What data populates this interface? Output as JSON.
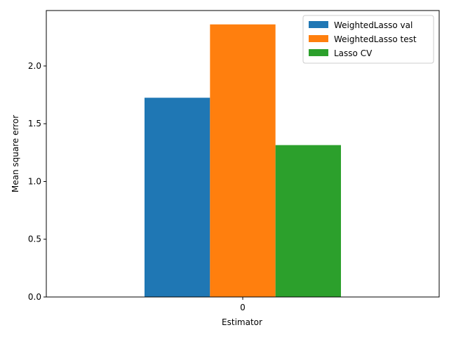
{
  "chart_data": {
    "type": "bar",
    "title": "",
    "xlabel": "Estimator",
    "ylabel": "Mean square error",
    "categories": [
      "0"
    ],
    "series": [
      {
        "name": "WeightedLasso val",
        "values": [
          1.725
        ],
        "color": "#1f77b4"
      },
      {
        "name": "WeightedLasso test",
        "values": [
          2.36
        ],
        "color": "#ff7f0e"
      },
      {
        "name": "Lasso CV",
        "values": [
          1.315
        ],
        "color": "#2ca02c"
      }
    ],
    "ylim": [
      0,
      2.48
    ],
    "yticks": [
      0.0,
      0.5,
      1.0,
      1.5,
      2.0
    ],
    "ytick_labels": [
      "0.0",
      "0.5",
      "1.0",
      "1.5",
      "2.0"
    ],
    "grid": false,
    "legend_position": "top-right"
  }
}
